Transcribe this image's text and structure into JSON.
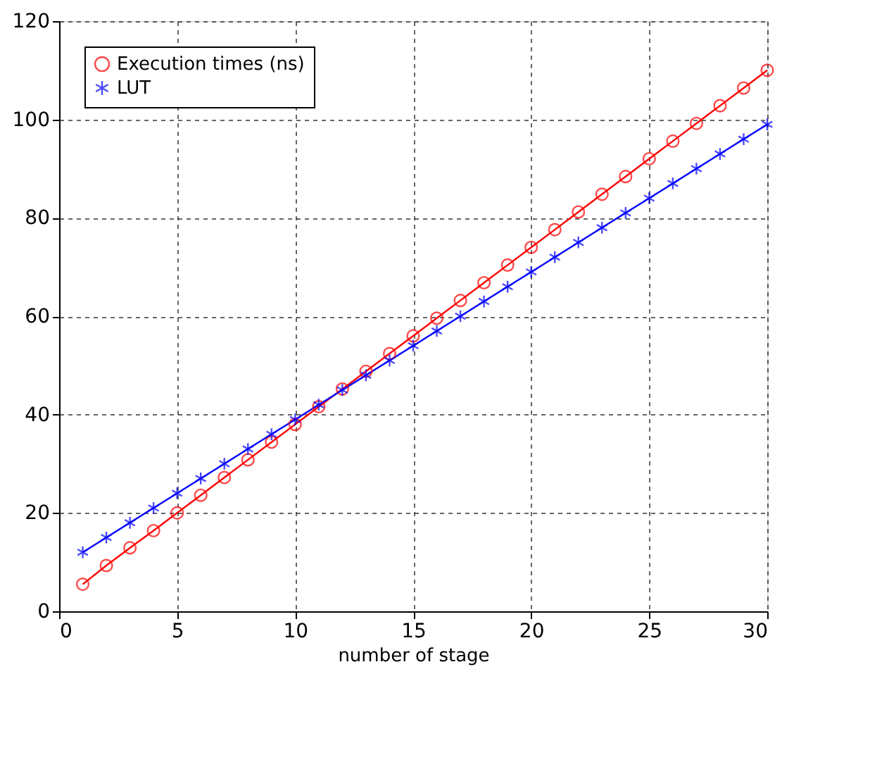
{
  "chart_data": {
    "type": "line",
    "xlabel": "number of stage",
    "x": [
      1,
      2,
      3,
      4,
      5,
      6,
      7,
      8,
      9,
      10,
      11,
      12,
      13,
      14,
      15,
      16,
      17,
      18,
      19,
      20,
      21,
      22,
      23,
      24,
      25,
      26,
      27,
      28,
      29,
      30
    ],
    "series": [
      {
        "name": "Execution times (ns)",
        "color": "#ff0000",
        "marker": "circle",
        "values": [
          5.5,
          9.3,
          12.9,
          16.4,
          20,
          23.6,
          27.2,
          30.8,
          34.4,
          38,
          41.6,
          45.2,
          48.8,
          52.4,
          56,
          59.6,
          63.2,
          66.8,
          70.4,
          74,
          77.6,
          81.2,
          84.8,
          88.4,
          92,
          95.6,
          99.2,
          102.8,
          106.4,
          110
        ]
      },
      {
        "name": "LUT",
        "color": "#0000ff",
        "marker": "cross",
        "values": [
          12,
          15,
          18,
          21,
          24,
          27,
          30,
          33,
          36,
          39,
          42,
          45,
          48,
          51,
          54,
          57,
          60,
          63,
          66,
          69,
          72,
          75,
          78,
          81,
          84,
          87,
          90,
          93,
          96,
          99
        ]
      }
    ],
    "xlim": [
      0,
      30
    ],
    "xticks": [
      0,
      5,
      10,
      15,
      20,
      25,
      30
    ],
    "ylim": [
      0,
      120
    ],
    "yticks": [
      0,
      20,
      40,
      60,
      80,
      100,
      120
    ],
    "grid": true,
    "legend": "top left",
    "line_style": "solid"
  }
}
